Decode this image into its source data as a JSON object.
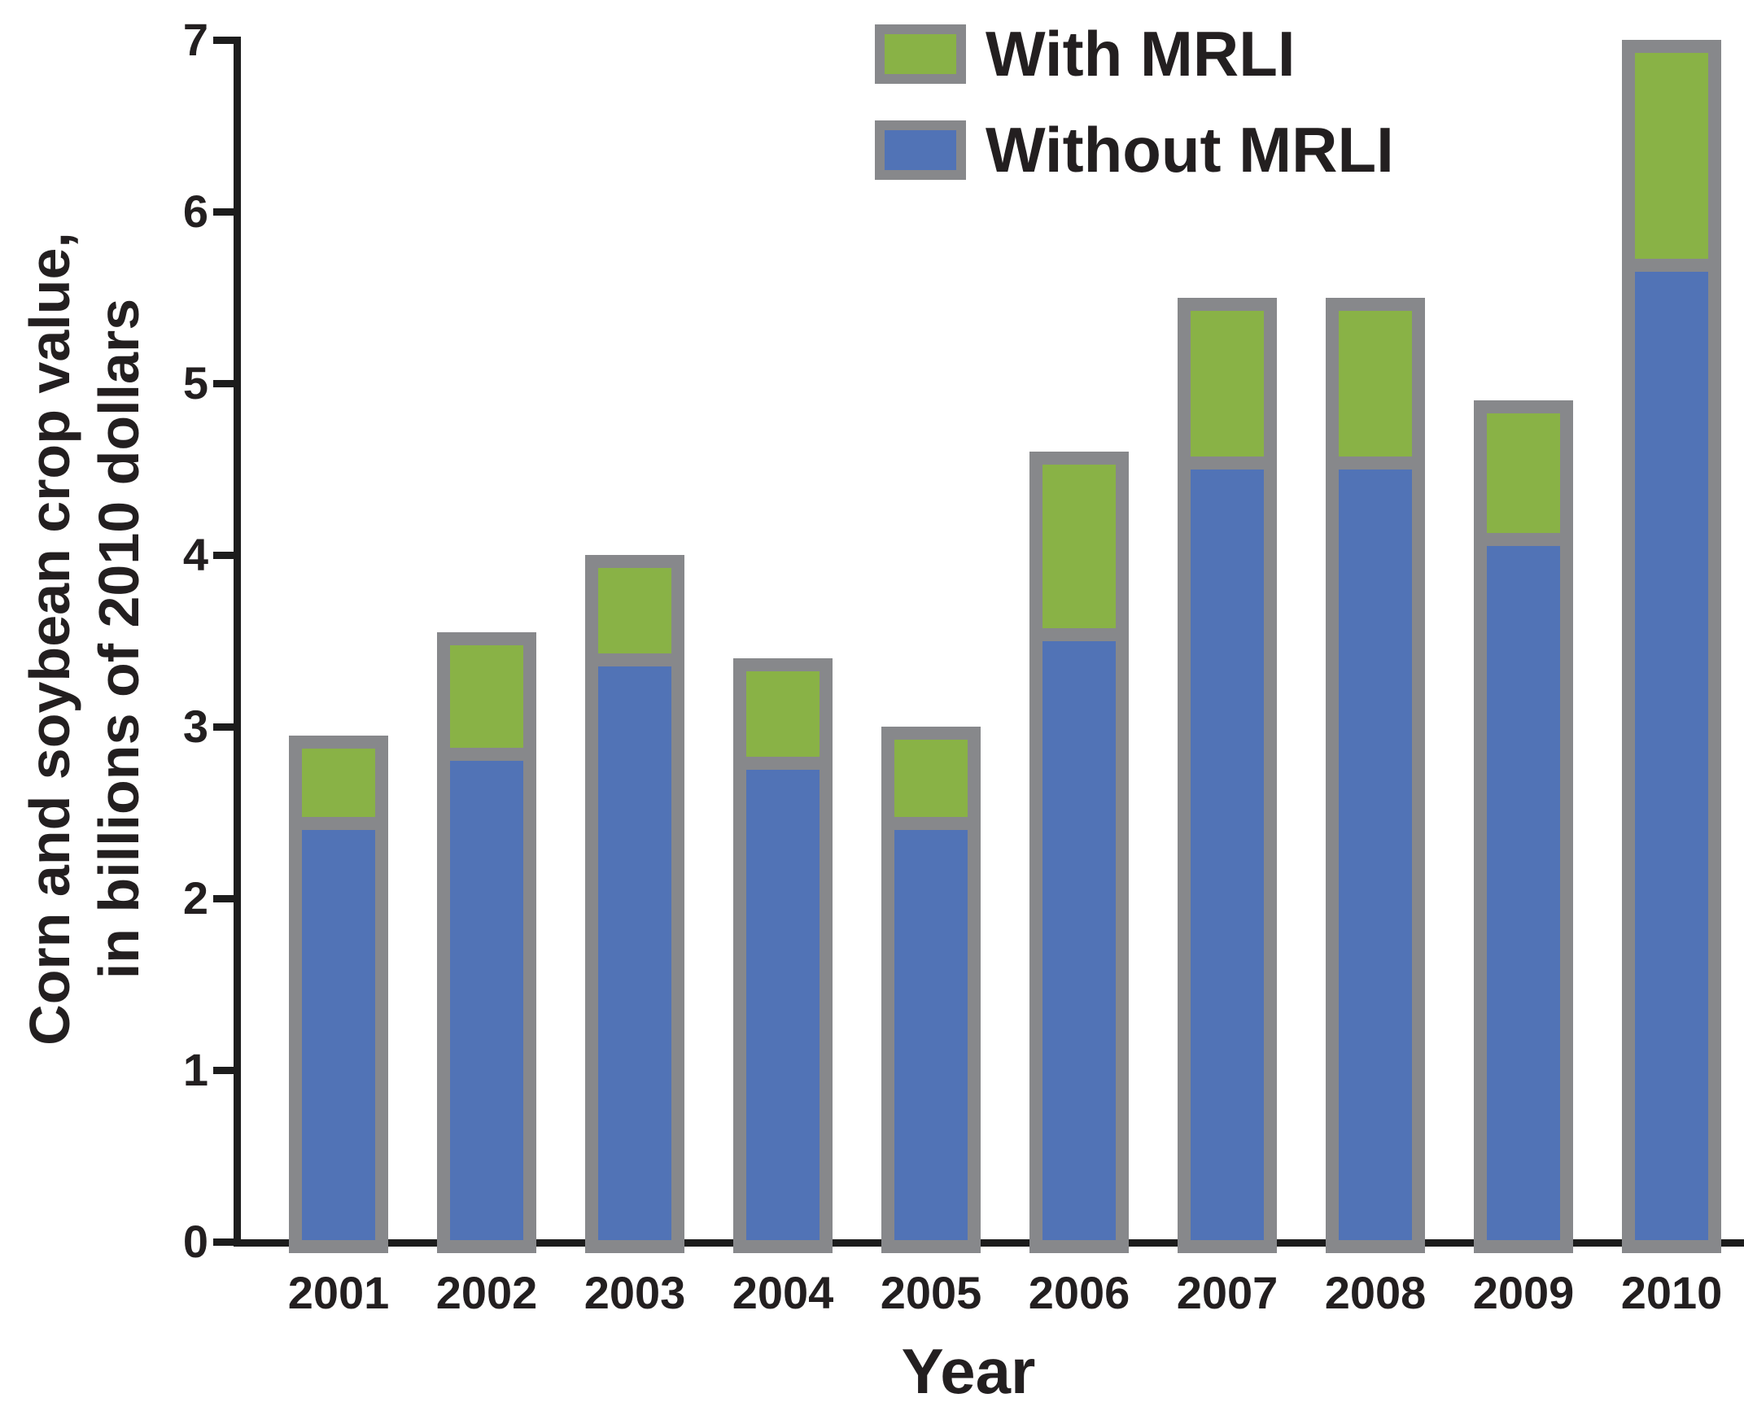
{
  "y_axis": {
    "title_line1": "Corn and soybean crop value,",
    "title_line2": "in billions of 2010 dollars",
    "ticks": [
      0,
      1,
      2,
      3,
      4,
      5,
      6,
      7
    ]
  },
  "x_axis": {
    "title": "Year"
  },
  "legend": {
    "items": [
      {
        "label": "With MRLI",
        "color": "#89b246"
      },
      {
        "label": "Without MRLI",
        "color": "#5173b6"
      }
    ]
  },
  "chart_data": {
    "type": "bar",
    "subtype": "stacked",
    "title": "",
    "xlabel": "Year",
    "ylabel": "Corn and soybean crop value, in billions of 2010 dollars",
    "ylim": [
      0,
      7
    ],
    "yticks": [
      0,
      1,
      2,
      3,
      4,
      5,
      6,
      7
    ],
    "grid": false,
    "legend_position": "top-center-inside",
    "categories": [
      "2001",
      "2002",
      "2003",
      "2004",
      "2005",
      "2006",
      "2007",
      "2008",
      "2009",
      "2010"
    ],
    "series": [
      {
        "name": "Without MRLI",
        "color": "#5173b6",
        "values": [
          2.4,
          2.8,
          3.35,
          2.75,
          2.4,
          3.5,
          4.5,
          4.5,
          4.05,
          5.65
        ]
      },
      {
        "name": "With MRLI",
        "color": "#89b246",
        "values_are": "increment stacked above Without MRLI",
        "values": [
          0.55,
          0.75,
          0.65,
          0.65,
          0.6,
          1.1,
          1.0,
          1.0,
          0.85,
          1.35
        ]
      }
    ],
    "totals_with_mrli": [
      2.95,
      3.55,
      4.0,
      3.4,
      3.0,
      4.6,
      5.5,
      5.5,
      4.9,
      7.0
    ],
    "bar_outline_color": "#87888b"
  },
  "colors": {
    "with_mrli_green": "#89b246",
    "without_mrli_blue": "#5173b6",
    "bar_border_gray": "#87888b",
    "axis_black": "#1c1c1c",
    "text": "#231f20",
    "background": "#ffffff"
  }
}
